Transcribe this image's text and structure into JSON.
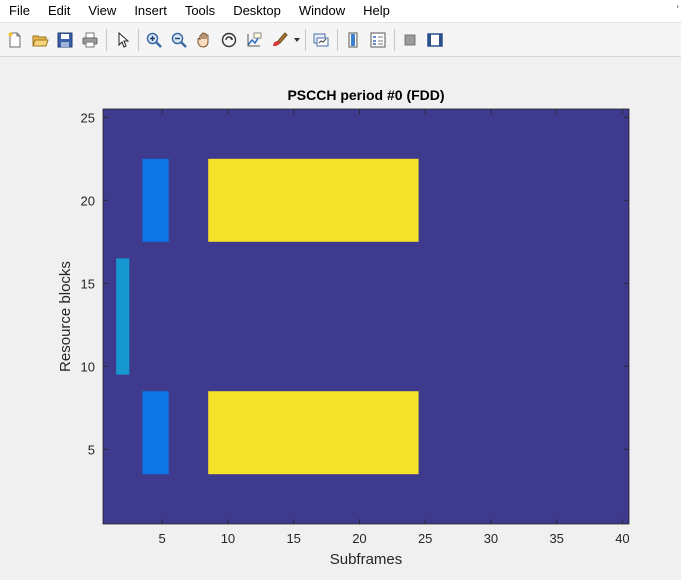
{
  "menu": {
    "items": [
      "File",
      "Edit",
      "View",
      "Insert",
      "Tools",
      "Desktop",
      "Window",
      "Help"
    ],
    "overflow": "’"
  },
  "toolbar": {
    "buttons": [
      {
        "icon": "new-figure-icon"
      },
      {
        "icon": "open-file-icon"
      },
      {
        "icon": "save-icon"
      },
      {
        "icon": "print-icon"
      },
      {
        "icon": "pointer-icon"
      },
      {
        "icon": "zoom-in-icon"
      },
      {
        "icon": "zoom-out-icon"
      },
      {
        "icon": "pan-icon"
      },
      {
        "icon": "rotate-3d-icon"
      },
      {
        "icon": "data-cursor-icon"
      },
      {
        "icon": "brush-icon"
      },
      {
        "icon": "link-plot-icon"
      },
      {
        "icon": "insert-colorbar-icon"
      },
      {
        "icon": "insert-legend-icon"
      },
      {
        "icon": "hide-plot-tools-icon"
      },
      {
        "icon": "show-plot-tools-icon"
      }
    ]
  },
  "colors": {
    "background_cell": "#3e3a8d",
    "pssch_data": "#f4e22a",
    "pscch": "#0d75e6",
    "sync": "#1598d0",
    "axes_bg": "#ffffff"
  },
  "chart_data": {
    "type": "heatmap",
    "title": "PSCCH period #0 (FDD)",
    "xlabel": "Subframes",
    "ylabel": "Resource blocks",
    "xlim": [
      0.5,
      40.5
    ],
    "ylim": [
      0.5,
      25.5
    ],
    "xticks": [
      5,
      10,
      15,
      20,
      25,
      30,
      35,
      40
    ],
    "yticks": [
      5,
      10,
      15,
      20,
      25
    ],
    "background_value": 0,
    "regions": [
      {
        "x": [
          1.5,
          2.5
        ],
        "y": [
          9.5,
          16.5
        ],
        "color": "sync"
      },
      {
        "x": [
          3.5,
          5.5
        ],
        "y": [
          17.5,
          22.5
        ],
        "color": "pscch"
      },
      {
        "x": [
          3.5,
          5.5
        ],
        "y": [
          3.5,
          8.5
        ],
        "color": "pscch"
      },
      {
        "x": [
          8.5,
          24.5
        ],
        "y": [
          17.5,
          22.5
        ],
        "color": "pssch_data"
      },
      {
        "x": [
          8.5,
          24.5
        ],
        "y": [
          3.5,
          8.5
        ],
        "color": "pssch_data"
      }
    ]
  }
}
